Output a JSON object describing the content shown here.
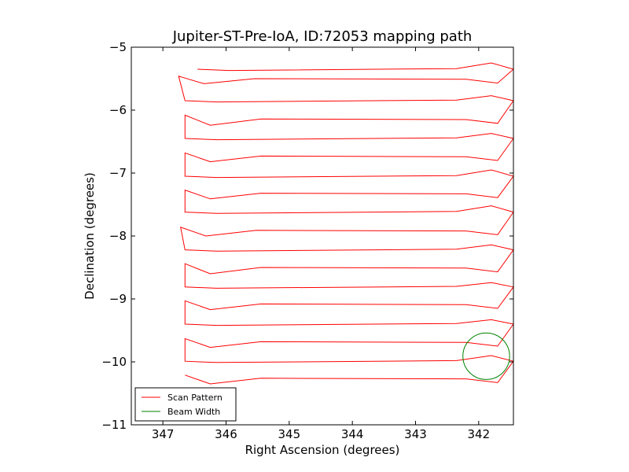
{
  "chart_data": {
    "type": "line",
    "title": "Jupiter-ST-Pre-IoA, ID:72053 mapping path",
    "xlabel": "Right Ascension (degrees)",
    "ylabel": "Declination (degrees)",
    "xlim": [
      347.5,
      341.45
    ],
    "ylim": [
      -11,
      -5
    ],
    "x_reversed": true,
    "xticks": [
      347,
      346,
      345,
      344,
      343,
      342
    ],
    "xtick_labels": [
      "347",
      "346",
      "345",
      "344",
      "343",
      "342"
    ],
    "yticks": [
      -11,
      -10,
      -9,
      -8,
      -7,
      -6,
      -5
    ],
    "ytick_labels": [
      "−11",
      "−10",
      "−9",
      "−8",
      "−7",
      "−6",
      "−5"
    ],
    "grid": false,
    "legend_position": "lower-left",
    "colors": {
      "scan": "#ff0000",
      "beam": "#008000"
    },
    "series": [
      {
        "name": "Scan Pattern",
        "style": "line",
        "rows": [
          {
            "dec": -5.35,
            "left": 346.45,
            "right": 341.45,
            "slope": 0.1
          },
          {
            "dec": -5.52,
            "left": 346.75,
            "right": 341.45,
            "slope": 0.06
          },
          {
            "dec": -5.85,
            "left": 346.65,
            "right": 341.45,
            "slope": 0.08
          },
          {
            "dec": -6.16,
            "left": 346.65,
            "right": 341.45,
            "slope": 0.08
          },
          {
            "dec": -6.45,
            "left": 346.65,
            "right": 341.45,
            "slope": 0.08
          },
          {
            "dec": -6.75,
            "left": 346.65,
            "right": 341.45,
            "slope": 0.07
          },
          {
            "dec": -7.05,
            "left": 346.65,
            "right": 341.45,
            "slope": 0.1
          },
          {
            "dec": -7.34,
            "left": 346.65,
            "right": 341.45,
            "slope": 0.07
          },
          {
            "dec": -7.62,
            "left": 346.65,
            "right": 341.45,
            "slope": 0.1
          },
          {
            "dec": -7.93,
            "left": 346.72,
            "right": 341.45,
            "slope": 0.07
          },
          {
            "dec": -8.22,
            "left": 346.65,
            "right": 341.45,
            "slope": 0.08
          },
          {
            "dec": -8.52,
            "left": 346.65,
            "right": 341.45,
            "slope": 0.08
          },
          {
            "dec": -8.81,
            "left": 346.65,
            "right": 341.45,
            "slope": 0.07
          },
          {
            "dec": -9.1,
            "left": 346.65,
            "right": 341.45,
            "slope": 0.07
          },
          {
            "dec": -9.4,
            "left": 346.65,
            "right": 341.45,
            "slope": 0.07
          },
          {
            "dec": -9.7,
            "left": 346.65,
            "right": 341.45,
            "slope": 0.07
          },
          {
            "dec": -9.99,
            "left": 346.65,
            "right": 341.45,
            "slope": 0.09
          },
          {
            "dec": -10.28,
            "left": 346.65,
            "right": 341.45,
            "slope": 0.07
          }
        ]
      },
      {
        "name": "Beam Width",
        "style": "circle",
        "center": [
          341.88,
          -9.91
        ],
        "radius_deg": 0.37
      }
    ]
  }
}
